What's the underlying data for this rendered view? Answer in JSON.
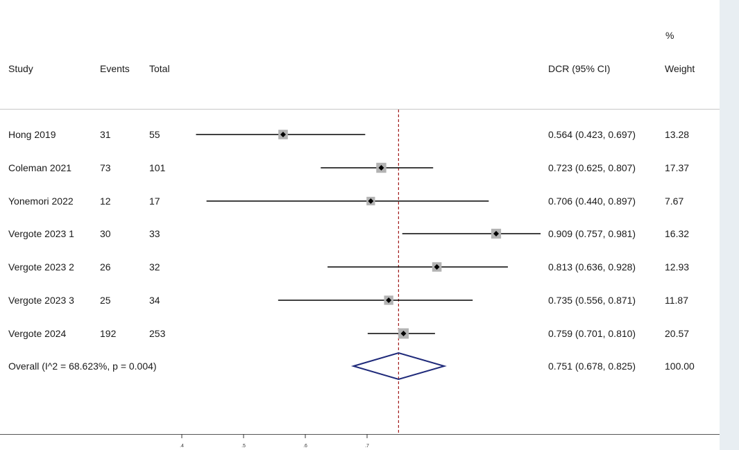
{
  "header": {
    "study": "Study",
    "events": "Events",
    "total": "Total",
    "estimate": "DCR (95% CI)",
    "weight_pct": "%",
    "weight": "Weight"
  },
  "rows": [
    {
      "study": "Hong 2019",
      "events": "31",
      "total": "55",
      "ci_text": "0.564 (0.423, 0.697)",
      "weight": "13.28"
    },
    {
      "study": "Coleman 2021",
      "events": "73",
      "total": "101",
      "ci_text": "0.723 (0.625, 0.807)",
      "weight": "17.37"
    },
    {
      "study": "Yonemori 2022",
      "events": "12",
      "total": "17",
      "ci_text": "0.706 (0.440, 0.897)",
      "weight": "7.67"
    },
    {
      "study": "Vergote 2023 1",
      "events": "30",
      "total": "33",
      "ci_text": "0.909 (0.757, 0.981)",
      "weight": "16.32"
    },
    {
      "study": "Vergote 2023 2",
      "events": "26",
      "total": "32",
      "ci_text": "0.813 (0.636, 0.928)",
      "weight": "12.93"
    },
    {
      "study": "Vergote 2023 3",
      "events": "25",
      "total": "34",
      "ci_text": "0.735 (0.556, 0.871)",
      "weight": "11.87"
    },
    {
      "study": "Vergote 2024",
      "events": "192",
      "total": "253",
      "ci_text": "0.759 (0.701, 0.810)",
      "weight": "20.57"
    }
  ],
  "overall": {
    "label": "Overall  (I^2 = 68.623%, p = 0.004)",
    "ci_text": "0.751 (0.678, 0.825)",
    "weight": "100.00"
  },
  "chart_data": {
    "type": "forest",
    "xlabel": "",
    "ylabel": "",
    "x_ticks": [
      ".4",
      ".5",
      ".6",
      ".7"
    ],
    "x_tick_values": [
      0.4,
      0.5,
      0.6,
      0.7
    ],
    "reference_line": 0.751,
    "studies": [
      {
        "name": "Hong 2019",
        "estimate": 0.564,
        "lower": 0.423,
        "upper": 0.697,
        "weight": 13.28
      },
      {
        "name": "Coleman 2021",
        "estimate": 0.723,
        "lower": 0.625,
        "upper": 0.807,
        "weight": 17.37
      },
      {
        "name": "Yonemori 2022",
        "estimate": 0.706,
        "lower": 0.44,
        "upper": 0.897,
        "weight": 7.67
      },
      {
        "name": "Vergote 2023 1",
        "estimate": 0.909,
        "lower": 0.757,
        "upper": 0.981,
        "weight": 16.32
      },
      {
        "name": "Vergote 2023 2",
        "estimate": 0.813,
        "lower": 0.636,
        "upper": 0.928,
        "weight": 12.93
      },
      {
        "name": "Vergote 2023 3",
        "estimate": 0.735,
        "lower": 0.556,
        "upper": 0.871,
        "weight": 11.87
      },
      {
        "name": "Vergote 2024",
        "estimate": 0.759,
        "lower": 0.701,
        "upper": 0.81,
        "weight": 20.57
      }
    ],
    "overall": {
      "estimate": 0.751,
      "lower": 0.678,
      "upper": 0.825,
      "weight": 100.0
    },
    "colors": {
      "ci_line": "#000000",
      "weight_box": "#b3b3b3",
      "point": "#000000",
      "diamond": "#1f2a7a",
      "reference_line": "#a11a1a"
    }
  }
}
